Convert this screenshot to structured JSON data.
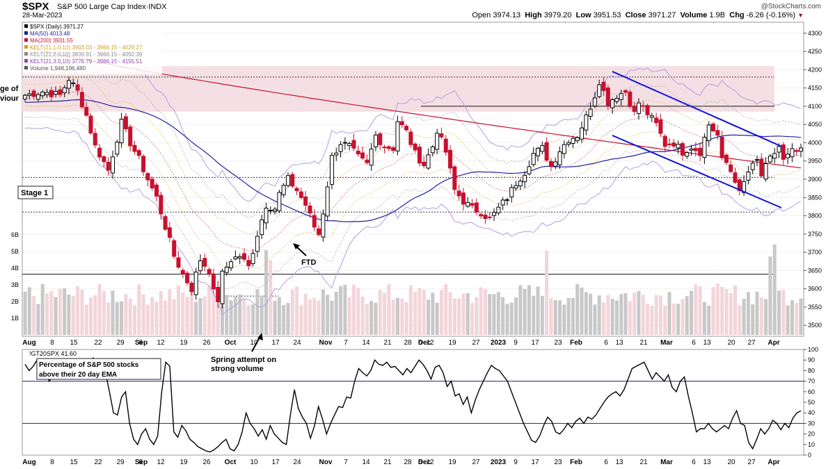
{
  "header": {
    "ticker": "$SPX",
    "name": "S&P 500 Large Cap Index",
    "exchange": "INDX",
    "date": "28-Mar-2023",
    "credit": "@StockCharts.com",
    "ohlc": {
      "open_label": "Open",
      "open": "3974.13",
      "high_label": "High",
      "high": "3979.20",
      "low_label": "Low",
      "low": "3951.53",
      "close_label": "Close",
      "close": "3971.27",
      "volume_label": "Volume",
      "volume": "1.9B",
      "chg_label": "Chg",
      "chg": "-6.26 (-0.16%)"
    }
  },
  "legend": [
    {
      "text": "$SPX (Daily) 3971.27",
      "color": "#000000"
    },
    {
      "text": "MA(50) 4013.48",
      "color": "#1f1f9f"
    },
    {
      "text": "MA(200) 3931.55",
      "color": "#c8102e"
    },
    {
      "text": "KELT(21,1.0,10) 3903.03 - 3966.15 - 4029.27",
      "color": "#d4a017"
    },
    {
      "text": "KELT(21,2.0,10) 3839.91 - 3966.15 - 4092.39",
      "color": "#8a8a8a"
    },
    {
      "text": "KELT(21,3.0,10) 3776.79 - 3966.15 - 4155.51",
      "color": "#8e44ad"
    },
    {
      "text": "Volume 1,948,196,480",
      "color": "#555555"
    }
  ],
  "annotations": {
    "stage1": "Stage 1",
    "left_zone_1": "ge of",
    "left_zone_2": "viour",
    "ftd": "FTD",
    "spring_1": "Spring attempt on",
    "spring_2": "strong volume",
    "breadth_1": "Percentage of S&P 500 stocks",
    "breadth_2": "above their 20 day EMA"
  },
  "colors": {
    "up": "#000000",
    "down": "#c8102e",
    "ma50": "#1f1f9f",
    "ma200": "#c8102e",
    "kelt1": "#d4a017",
    "kelt2": "#aaaaaa",
    "kelt3": "#b59ce0",
    "zone": "#f4e0e4",
    "channel": "#1010e0"
  },
  "chart_data": [
    {
      "type": "candlestick",
      "title": "$SPX S&P 500 Large Cap Index",
      "ylim": [
        3470,
        4330
      ],
      "y_ticks": [
        3500,
        3550,
        3600,
        3650,
        3700,
        3750,
        3800,
        3850,
        3900,
        3950,
        4000,
        4050,
        4100,
        4150,
        4200,
        4250,
        4300
      ],
      "x_ticks": [
        "Aug",
        "8",
        "15",
        "22",
        "29",
        "Sep",
        "6",
        "12",
        "19",
        "26",
        "Oct",
        "10",
        "17",
        "24",
        "Nov",
        "7",
        "14",
        "21",
        "28",
        "Dec",
        "5",
        "12",
        "19",
        "27",
        "2023",
        "9",
        "17",
        "23",
        "Feb",
        "6",
        "13",
        "21",
        "Mar",
        "6",
        "13",
        "20",
        "27",
        "Apr"
      ],
      "volume_ticks": [
        "1B",
        "2B",
        "3B",
        "4B",
        "5B",
        "6B"
      ],
      "close_path": [
        [
          0,
          4130
        ],
        [
          4,
          4140
        ],
        [
          8,
          4130
        ],
        [
          10,
          4175
        ],
        [
          12,
          4140
        ],
        [
          14,
          4075
        ],
        [
          16,
          3990
        ],
        [
          19,
          3925
        ],
        [
          22,
          4055
        ],
        [
          24,
          4000
        ],
        [
          26,
          3955
        ],
        [
          28,
          3900
        ],
        [
          30,
          3850
        ],
        [
          32,
          3770
        ],
        [
          34,
          3690
        ],
        [
          36,
          3640
        ],
        [
          38,
          3600
        ],
        [
          40,
          3680
        ],
        [
          42,
          3650
        ],
        [
          43,
          3590
        ],
        [
          44,
          3570
        ],
        [
          45,
          3640
        ],
        [
          47,
          3680
        ],
        [
          49,
          3690
        ],
        [
          51,
          3660
        ],
        [
          53,
          3750
        ],
        [
          55,
          3830
        ],
        [
          57,
          3820
        ],
        [
          58,
          3860
        ],
        [
          60,
          3900
        ],
        [
          62,
          3870
        ],
        [
          64,
          3830
        ],
        [
          66,
          3770
        ],
        [
          67,
          3750
        ],
        [
          68,
          3810
        ],
        [
          70,
          3960
        ],
        [
          72,
          4000
        ],
        [
          74,
          3990
        ],
        [
          76,
          3960
        ],
        [
          78,
          3940
        ],
        [
          80,
          4020
        ],
        [
          82,
          3990
        ],
        [
          84,
          3985
        ],
        [
          85,
          4060
        ],
        [
          87,
          4030
        ],
        [
          89,
          3970
        ],
        [
          91,
          3940
        ],
        [
          93,
          3990
        ],
        [
          94,
          4035
        ],
        [
          96,
          3975
        ],
        [
          98,
          3870
        ],
        [
          100,
          3840
        ],
        [
          102,
          3820
        ],
        [
          104,
          3810
        ],
        [
          106,
          3790
        ],
        [
          108,
          3820
        ],
        [
          110,
          3850
        ],
        [
          112,
          3890
        ],
        [
          114,
          3920
        ],
        [
          116,
          3970
        ],
        [
          118,
          3985
        ],
        [
          120,
          3935
        ],
        [
          122,
          3980
        ],
        [
          124,
          4010
        ],
        [
          126,
          4020
        ],
        [
          128,
          4070
        ],
        [
          130,
          4130
        ],
        [
          131,
          4170
        ],
        [
          133,
          4110
        ],
        [
          135,
          4130
        ],
        [
          137,
          4140
        ],
        [
          139,
          4080
        ],
        [
          140,
          4110
        ],
        [
          142,
          4080
        ],
        [
          144,
          4050
        ],
        [
          146,
          3995
        ],
        [
          148,
          4000
        ],
        [
          150,
          3975
        ],
        [
          152,
          3990
        ],
        [
          154,
          3975
        ],
        [
          156,
          4050
        ],
        [
          158,
          4020
        ],
        [
          159,
          3950
        ],
        [
          160,
          3945
        ],
        [
          162,
          3900
        ],
        [
          163,
          3860
        ],
        [
          165,
          3920
        ],
        [
          167,
          3950
        ],
        [
          168,
          3910
        ],
        [
          170,
          3955
        ],
        [
          172,
          3990
        ],
        [
          173,
          3950
        ],
        [
          175,
          3975
        ],
        [
          177,
          3975
        ]
      ]
    },
    {
      "type": "line",
      "title": "!GT20SPX 41.60",
      "ylim": [
        0,
        100
      ],
      "y_ticks": [
        0,
        10,
        20,
        30,
        40,
        50,
        60,
        70,
        80,
        90,
        100
      ],
      "reference_lines": [
        30,
        70
      ],
      "x_ticks": [
        "Aug",
        "8",
        "15",
        "22",
        "29",
        "Sep",
        "6",
        "12",
        "19",
        "26",
        "Oct",
        "10",
        "17",
        "24",
        "Nov",
        "7",
        "14",
        "21",
        "28",
        "Dec",
        "5",
        "12",
        "19",
        "27",
        "2023",
        "9",
        "17",
        "23",
        "Feb",
        "6",
        "13",
        "21",
        "Mar",
        "6",
        "13",
        "20",
        "27",
        "Apr"
      ],
      "values": [
        86,
        80,
        84,
        90,
        88,
        78,
        70,
        75,
        83,
        85,
        80,
        78,
        72,
        76,
        80,
        85,
        90,
        92,
        85,
        82,
        78,
        60,
        40,
        38,
        55,
        60,
        30,
        15,
        10,
        20,
        25,
        15,
        10,
        18,
        60,
        88,
        84,
        22,
        17,
        28,
        23,
        15,
        12,
        8,
        6,
        4,
        3,
        5,
        8,
        12,
        15,
        6,
        4,
        10,
        22,
        40,
        30,
        25,
        18,
        24,
        15,
        28,
        20,
        16,
        12,
        10,
        38,
        62,
        44,
        36,
        30,
        16,
        28,
        46,
        34,
        20,
        30,
        38,
        46,
        45,
        55,
        54,
        70,
        82,
        78,
        75,
        80,
        90,
        86,
        85,
        88,
        83,
        84,
        80,
        76,
        82,
        78,
        84,
        90,
        86,
        80,
        72,
        83,
        85,
        78,
        65,
        70,
        56,
        58,
        48,
        55,
        40,
        52,
        62,
        70,
        78,
        85,
        82,
        80,
        75,
        70,
        60,
        50,
        40,
        30,
        22,
        14,
        12,
        18,
        28,
        36,
        32,
        22,
        20,
        24,
        30,
        26,
        32,
        35,
        30,
        36,
        34,
        38,
        44,
        50,
        55,
        58,
        60,
        56,
        62,
        72,
        82,
        84,
        86,
        88,
        80,
        72,
        78,
        74,
        70,
        76,
        64,
        60,
        70,
        74,
        56,
        40,
        22,
        25,
        25,
        30,
        25,
        22,
        25,
        28,
        25,
        35,
        42,
        30,
        28,
        12,
        6,
        15,
        25,
        20,
        25,
        33,
        30,
        24,
        30,
        26,
        35,
        40,
        42
      ]
    }
  ]
}
